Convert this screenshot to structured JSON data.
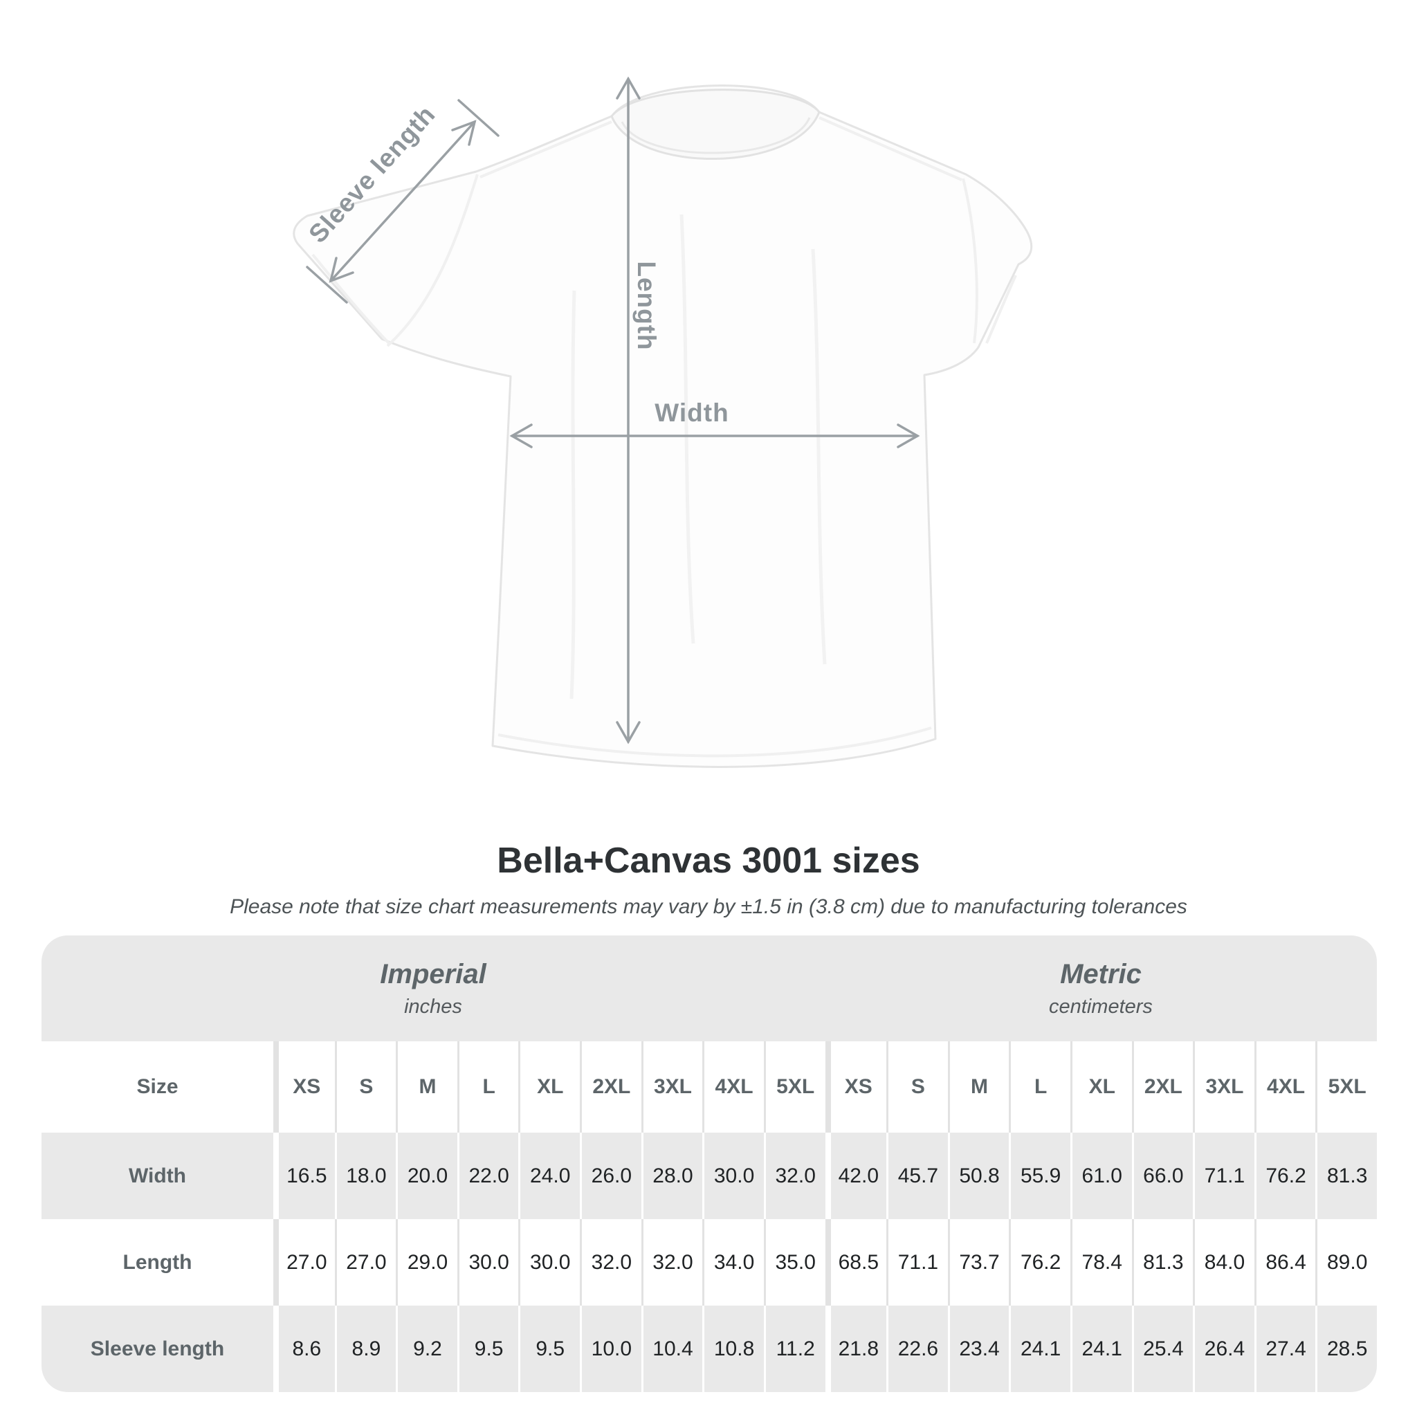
{
  "diagram": {
    "sleeve_label": "Sleeve length",
    "length_label": "Length",
    "width_label": "Width"
  },
  "header": {
    "title": "Bella+Canvas 3001 sizes",
    "subtitle": "Please note that size chart measurements may vary by ±1.5 in (3.8 cm) due to manufacturing tolerances"
  },
  "table": {
    "group_imperial": {
      "name": "Imperial",
      "unit": "inches"
    },
    "group_metric": {
      "name": "Metric",
      "unit": "centimeters"
    },
    "size_label": "Size",
    "sizes": [
      "XS",
      "S",
      "M",
      "L",
      "XL",
      "2XL",
      "3XL",
      "4XL",
      "5XL"
    ],
    "rows": [
      {
        "key": "width",
        "label": "Width",
        "imperial": [
          "16.5",
          "18.0",
          "20.0",
          "22.0",
          "24.0",
          "26.0",
          "28.0",
          "30.0",
          "32.0"
        ],
        "metric": [
          "42.0",
          "45.7",
          "50.8",
          "55.9",
          "61.0",
          "66.0",
          "71.1",
          "76.2",
          "81.3"
        ]
      },
      {
        "key": "length",
        "label": "Length",
        "imperial": [
          "27.0",
          "27.0",
          "29.0",
          "30.0",
          "30.0",
          "32.0",
          "32.0",
          "34.0",
          "35.0"
        ],
        "metric": [
          "68.5",
          "71.1",
          "73.7",
          "76.2",
          "78.4",
          "81.3",
          "84.0",
          "86.4",
          "89.0"
        ]
      },
      {
        "key": "sleeve_length",
        "label": "Sleeve length",
        "imperial": [
          "8.6",
          "8.9",
          "9.2",
          "9.5",
          "9.5",
          "10.0",
          "10.4",
          "10.8",
          "11.2"
        ],
        "metric": [
          "21.8",
          "22.6",
          "23.4",
          "24.1",
          "24.1",
          "25.4",
          "26.4",
          "27.4",
          "28.5"
        ]
      }
    ]
  },
  "chart_data": {
    "type": "table",
    "title": "Bella+Canvas 3001 sizes",
    "note": "Size chart measurements may vary by ±1.5 in (3.8 cm) due to manufacturing tolerances",
    "units": {
      "imperial": "inches",
      "metric": "centimeters"
    },
    "sizes": [
      "XS",
      "S",
      "M",
      "L",
      "XL",
      "2XL",
      "3XL",
      "4XL",
      "5XL"
    ],
    "measurements": {
      "width_in": [
        16.5,
        18.0,
        20.0,
        22.0,
        24.0,
        26.0,
        28.0,
        30.0,
        32.0
      ],
      "length_in": [
        27.0,
        27.0,
        29.0,
        30.0,
        30.0,
        32.0,
        32.0,
        34.0,
        35.0
      ],
      "sleeve_length_in": [
        8.6,
        8.9,
        9.2,
        9.5,
        9.5,
        10.0,
        10.4,
        10.8,
        11.2
      ],
      "width_cm": [
        42.0,
        45.7,
        50.8,
        55.9,
        61.0,
        66.0,
        71.1,
        76.2,
        81.3
      ],
      "length_cm": [
        68.5,
        71.1,
        73.7,
        76.2,
        78.4,
        81.3,
        84.0,
        86.4,
        89.0
      ],
      "sleeve_length_cm": [
        21.8,
        22.6,
        23.4,
        24.1,
        24.1,
        25.4,
        26.4,
        27.4,
        28.5
      ]
    }
  },
  "colors": {
    "table_background": "#e9e9e9",
    "stripe": "#ffffff",
    "annotation": "#9aa0a4",
    "data_text": "#1f2224",
    "label_text": "#5d6569"
  }
}
